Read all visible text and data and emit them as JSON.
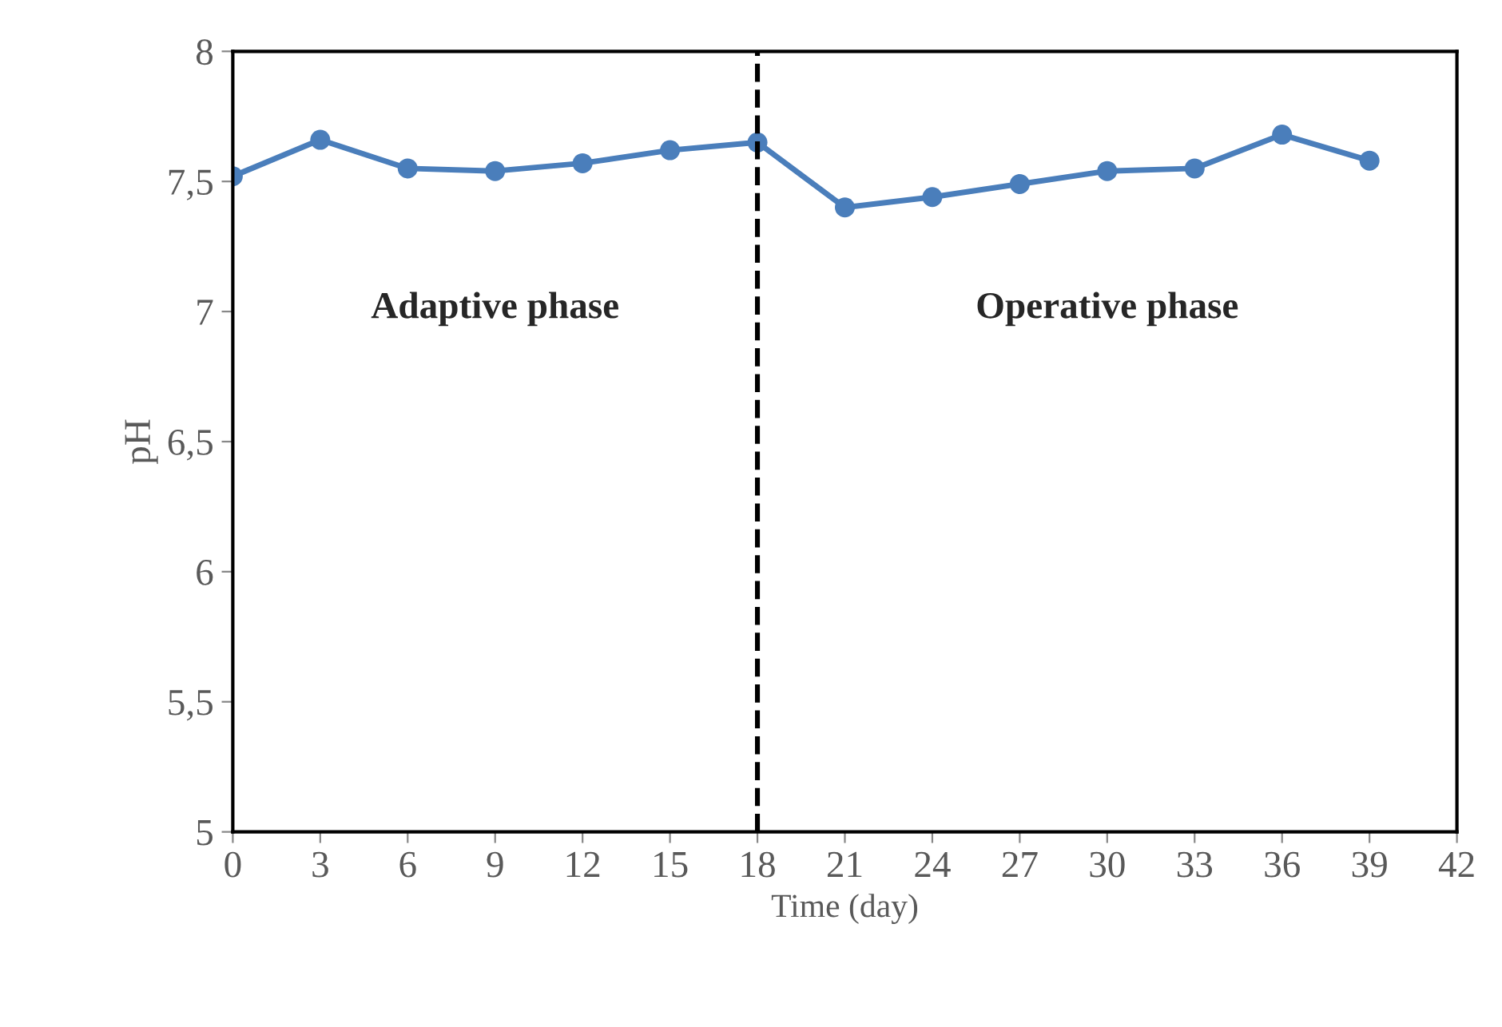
{
  "chart_data": {
    "type": "line",
    "xlabel": "Time (day)",
    "ylabel": "pH",
    "x": [
      0,
      3,
      6,
      9,
      12,
      15,
      18,
      21,
      24,
      27,
      30,
      33,
      36,
      39
    ],
    "series": [
      {
        "color": "#4a7ebb",
        "values": [
          7.52,
          7.66,
          7.55,
          7.54,
          7.57,
          7.62,
          7.65,
          7.4,
          7.44,
          7.49,
          7.54,
          7.55,
          7.68,
          7.58
        ]
      }
    ],
    "xlim": [
      0,
      42
    ],
    "xticks": [
      0,
      3,
      6,
      9,
      12,
      15,
      18,
      21,
      24,
      27,
      30,
      33,
      36,
      39,
      42
    ],
    "ylim": [
      5,
      8
    ],
    "yticks": [
      5,
      {
        "value": 5.5,
        "label": "5,5"
      },
      6,
      {
        "value": 6.5,
        "label": "6,5"
      },
      7,
      {
        "value": 7.5,
        "label": "7,5"
      },
      8
    ],
    "ref_lines": [
      {
        "axis": "x",
        "value": 18,
        "color": "#000000",
        "line_style": "dashed"
      }
    ],
    "annotations": [
      "Adaptive phase",
      "Operative phase"
    ],
    "grid": false,
    "legend": false,
    "marker": "circle",
    "line_style": "solid"
  }
}
